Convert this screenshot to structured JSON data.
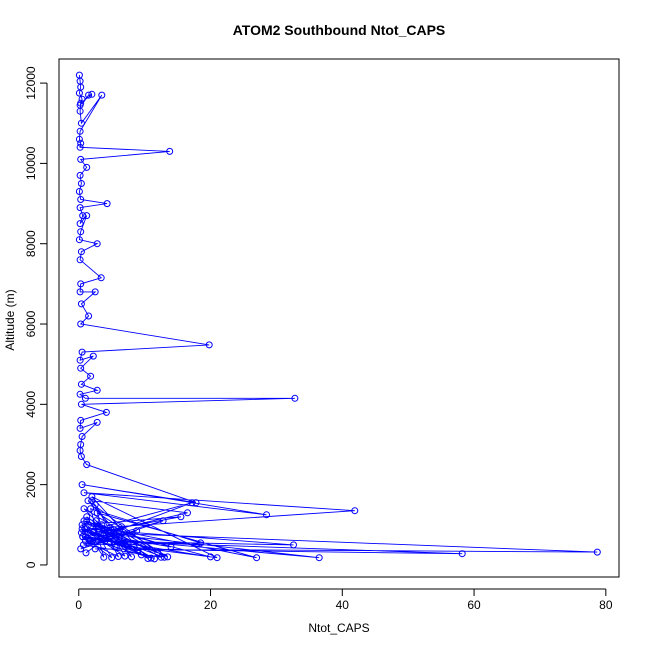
{
  "chart_data": {
    "type": "line",
    "title": "ATOM2 Southbound Ntot_CAPS",
    "xlabel": "Ntot_CAPS",
    "ylabel": "Altitude (m)",
    "xlim": [
      -3,
      82
    ],
    "ylim": [
      -300,
      12600
    ],
    "x_ticks": [
      0,
      20,
      40,
      60,
      80
    ],
    "y_ticks": [
      0,
      2000,
      4000,
      6000,
      8000,
      10000,
      12000
    ],
    "colors": {
      "series": "#0000ff",
      "axis": "#000000"
    },
    "series": [
      {
        "name": "Ntot_CAPS",
        "x": [
          0.1,
          0.2,
          0.3,
          0.1,
          0.5,
          0.2,
          1.5,
          2.0,
          0.3,
          0.2,
          0.4,
          3.5,
          0.2,
          0.1,
          0.3,
          0.2,
          13.8,
          0.3,
          1.2,
          0.2,
          0.4,
          0.1,
          0.3,
          4.3,
          0.2,
          0.6,
          0.2,
          1.2,
          0.3,
          0.1,
          2.8,
          0.4,
          0.2,
          3.4,
          0.3,
          0.2,
          2.5,
          0.4,
          1.5,
          0.3,
          19.8,
          0.5,
          0.2,
          2.2,
          0.3,
          1.8,
          0.4,
          2.8,
          0.2,
          1.0,
          32.8,
          0.4,
          4.2,
          0.3,
          0.2,
          2.8,
          0.5,
          0.3,
          0.2,
          0.4,
          1.2,
          17.8,
          0.5,
          28.5,
          0.8,
          41.9,
          1.2,
          32.6,
          1.8,
          58.2,
          2.5,
          78.7,
          3.0,
          36.5,
          1.0,
          20.0,
          1.5,
          27.0,
          2.8,
          13.5,
          1.2,
          11.5,
          3.0,
          12.0,
          0.8,
          8.0,
          2.0,
          16.5,
          0.6,
          5.0,
          1.2,
          9.5,
          0.5,
          4.0,
          2.5,
          7.0,
          1.5,
          14.0,
          0.8,
          10.5,
          2.0,
          21.0,
          1.0,
          6.0,
          3.5,
          12.5,
          0.7,
          18.5,
          1.8,
          3.8,
          0.5,
          15.5,
          2.2,
          11.0,
          0.6,
          7.5,
          1.4,
          13.0,
          0.9,
          9.0,
          2.6,
          5.5,
          0.4,
          17.2,
          1.6,
          8.8,
          0.3,
          12.8,
          2.1,
          6.5,
          1.1
        ],
        "y": [
          12200,
          12050,
          11900,
          11750,
          11600,
          11450,
          11700,
          11720,
          11500,
          11300,
          11000,
          11700,
          10800,
          10600,
          10500,
          10400,
          10300,
          10100,
          9900,
          9700,
          9500,
          9300,
          9100,
          9000,
          8900,
          8700,
          8500,
          8700,
          8300,
          8100,
          8000,
          7800,
          7600,
          7150,
          7000,
          6800,
          6800,
          6500,
          6200,
          6000,
          5480,
          5300,
          5100,
          5200,
          4900,
          4700,
          4500,
          4350,
          4250,
          4150,
          4150,
          4000,
          3800,
          3600,
          3400,
          3550,
          3200,
          3000,
          2850,
          2700,
          2500,
          1550,
          2000,
          1250,
          1800,
          1350,
          900,
          500,
          600,
          280,
          400,
          320,
          800,
          180,
          700,
          200,
          1000,
          180,
          1300,
          200,
          1100,
          150,
          900,
          300,
          1400,
          200,
          1600,
          1300,
          700,
          180,
          1200,
          250,
          900,
          600,
          1500,
          220,
          800,
          450,
          1100,
          160,
          1700,
          180,
          600,
          210,
          1000,
          190,
          500,
          550,
          1400,
          190,
          1000,
          1200,
          800,
          170,
          700,
          520,
          1600,
          190,
          900,
          350,
          1100,
          450,
          800,
          1550,
          600,
          850,
          400,
          1100,
          600,
          950,
          300
        ]
      }
    ]
  }
}
